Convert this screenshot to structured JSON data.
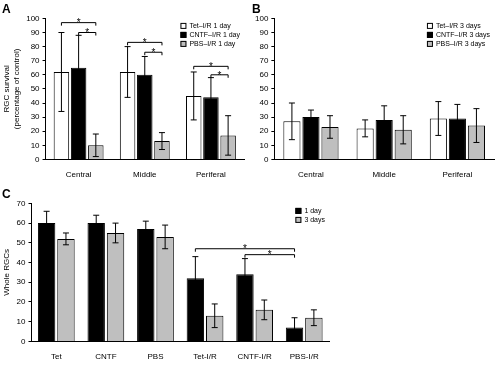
{
  "chart_data": [
    {
      "type": "bar",
      "title": "A",
      "y_label": [
        "RGC survival",
        "(percentage of control)"
      ],
      "categories": [
        "Central",
        "Middle",
        "Periferal"
      ],
      "series": [
        {
          "name": "Tet–I/R 1 day",
          "color": "#ffffff",
          "values": [
            62,
            62,
            45
          ],
          "errors": [
            28,
            18,
            17
          ]
        },
        {
          "name": "CNTF–I/R 1 day",
          "color": "#000000",
          "values": [
            65,
            60,
            44
          ],
          "errors": [
            23,
            13,
            14
          ]
        },
        {
          "name": "PBS–I/R 1 day",
          "color": "#bfbfbf",
          "values": [
            10,
            13,
            17
          ],
          "errors": [
            8,
            6,
            14
          ]
        }
      ],
      "ylim": [
        0,
        100
      ],
      "yticks": [
        0,
        10,
        20,
        30,
        40,
        50,
        60,
        70,
        80,
        90,
        100
      ],
      "grid": false,
      "legend": "upper right",
      "annotations": [
        {
          "text": "*",
          "from": [
            "Central",
            "Tet–I/R 1 day"
          ],
          "to": [
            "Central",
            "PBS–I/R 1 day"
          ],
          "y": 97
        },
        {
          "text": "*",
          "from": [
            "Central",
            "CNTF–I/R 1 day"
          ],
          "to": [
            "Central",
            "PBS–I/R 1 day"
          ],
          "y": 90
        },
        {
          "text": "*",
          "from": [
            "Middle",
            "Tet–I/R 1 day"
          ],
          "to": [
            "Middle",
            "PBS–I/R 1 day"
          ],
          "y": 83
        },
        {
          "text": "*",
          "from": [
            "Middle",
            "CNTF–I/R 1 day"
          ],
          "to": [
            "Middle",
            "PBS–I/R 1 day"
          ],
          "y": 76
        },
        {
          "text": "*",
          "from": [
            "Periferal",
            "Tet–I/R 1 day"
          ],
          "to": [
            "Periferal",
            "PBS–I/R 1 day"
          ],
          "y": 66
        },
        {
          "text": "*",
          "from": [
            "Periferal",
            "CNTF–I/R 1 day"
          ],
          "to": [
            "Periferal",
            "PBS–I/R 1 day"
          ],
          "y": 60
        }
      ]
    },
    {
      "type": "bar",
      "title": "B",
      "categories": [
        "Central",
        "Middle",
        "Periferal"
      ],
      "series": [
        {
          "name": "Tet–I/R 3 days",
          "color": "#ffffff",
          "values": [
            27,
            22,
            29
          ],
          "errors": [
            13,
            6,
            12
          ]
        },
        {
          "name": "CNTF–I/R 3 days",
          "color": "#000000",
          "values": [
            30,
            28,
            29
          ],
          "errors": [
            5,
            10,
            10
          ]
        },
        {
          "name": "PBS–I/R 3 days",
          "color": "#bfbfbf",
          "values": [
            23,
            21,
            24
          ],
          "errors": [
            8,
            10,
            12
          ]
        }
      ],
      "ylim": [
        0,
        100
      ],
      "yticks": [
        0,
        10,
        20,
        30,
        40,
        50,
        60,
        70,
        80,
        90,
        100
      ],
      "grid": false,
      "legend": "upper right"
    },
    {
      "type": "bar",
      "title": "C",
      "y_label": "Whole RGCs",
      "categories": [
        "Tet",
        "CNTF",
        "PBS",
        "Tet-I/R",
        "CNTF-I/R",
        "PBS-I/R"
      ],
      "series": [
        {
          "name": "1 day",
          "color": "#000000",
          "values": [
            60,
            60,
            57,
            32,
            34,
            7
          ],
          "errors": [
            6,
            4,
            4,
            11,
            8,
            5
          ]
        },
        {
          "name": "3 days",
          "color": "#bfbfbf",
          "values": [
            52,
            55,
            53,
            13,
            16,
            12
          ],
          "errors": [
            3,
            5,
            6,
            6,
            5,
            4
          ]
        }
      ],
      "ylim": [
        0,
        70
      ],
      "yticks": [
        0,
        10,
        20,
        30,
        40,
        50,
        60,
        70
      ],
      "grid": false,
      "legend": "upper right",
      "annotations": [
        {
          "text": "*",
          "from": [
            "Tet-I/R",
            "1 day"
          ],
          "to": [
            "PBS-I/R",
            "1 day"
          ],
          "y": 47
        },
        {
          "text": "*",
          "from": [
            "CNTF-I/R",
            "1 day"
          ],
          "to": [
            "PBS-I/R",
            "1 day"
          ],
          "y": 44
        }
      ]
    }
  ]
}
